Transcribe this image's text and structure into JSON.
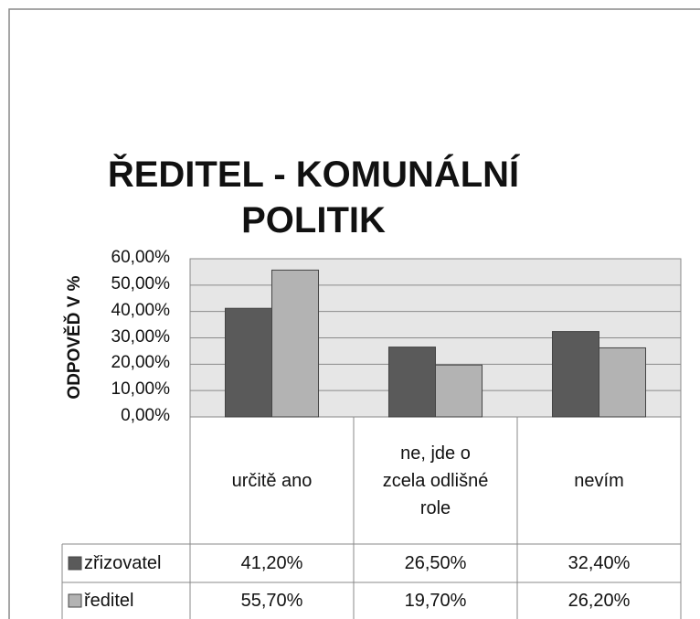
{
  "chart_data": {
    "type": "bar",
    "title": "ŘEDITEL - KOMUNÁLNÍ POLITIK",
    "y_label": "ODPOVĚĎ V %",
    "categories": [
      "určitě ano",
      "ne, jde o zcela odlišné role",
      "nevím"
    ],
    "series": [
      {
        "name": "zřizovatel",
        "color": "#5a5a5a",
        "values": [
          41.2,
          26.5,
          32.4
        ],
        "value_labels": [
          "41,20%",
          "26,50%",
          "32,40%"
        ]
      },
      {
        "name": "ředitel",
        "color": "#b3b3b3",
        "values": [
          55.7,
          19.7,
          26.2
        ],
        "value_labels": [
          "55,70%",
          "19,70%",
          "26,20%"
        ]
      }
    ],
    "ylim": [
      0,
      60
    ],
    "yticks": [
      {
        "value": 0,
        "label": "0,00%"
      },
      {
        "value": 10,
        "label": "10,00%"
      },
      {
        "value": 20,
        "label": "20,00%"
      },
      {
        "value": 30,
        "label": "30,00%"
      },
      {
        "value": 40,
        "label": "40,00%"
      },
      {
        "value": 50,
        "label": "50,00%"
      },
      {
        "value": 60,
        "label": "60,00%"
      }
    ],
    "grid": true
  }
}
